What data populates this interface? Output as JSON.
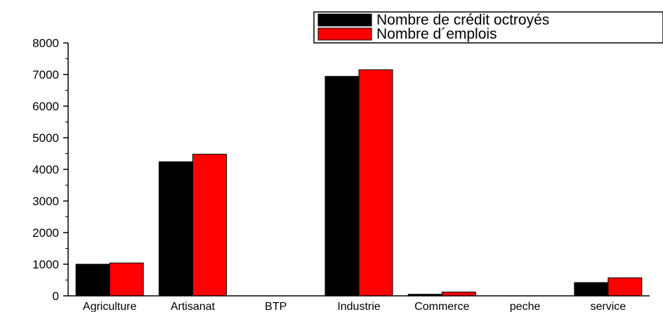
{
  "chart_data": {
    "type": "bar",
    "categories": [
      "Agriculture",
      "Artisanat",
      "BTP",
      "Industrie",
      "Commerce",
      "peche",
      "service"
    ],
    "series": [
      {
        "name": "Nombre de crédit octroyés",
        "color": "#000000",
        "values": [
          1000,
          4240,
          0,
          6940,
          50,
          0,
          420
        ]
      },
      {
        "name": "Nombre d´emplois",
        "color": "#ff0000",
        "values": [
          1040,
          4480,
          0,
          7150,
          120,
          0,
          570
        ]
      }
    ],
    "yticks": [
      "0",
      "1000",
      "2000",
      "3000",
      "4000",
      "5000",
      "6000",
      "7000",
      "8000"
    ],
    "ylim": [
      0,
      8000
    ],
    "title": "",
    "xlabel": "",
    "ylabel": "",
    "grid": false,
    "legend_position": "top-right"
  }
}
